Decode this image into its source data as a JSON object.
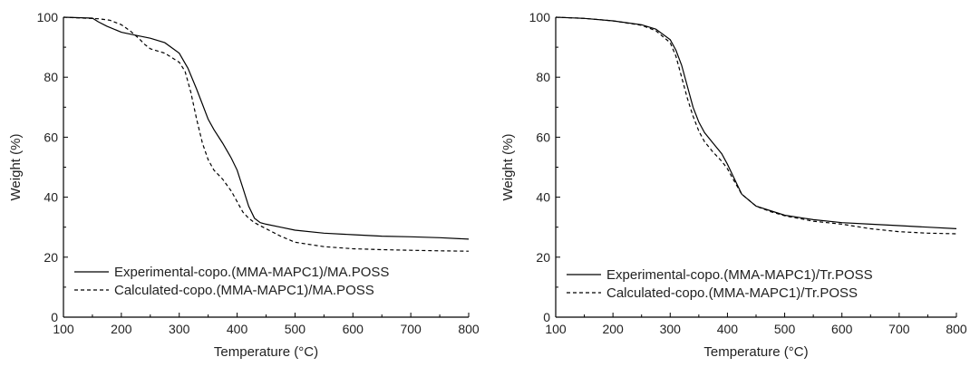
{
  "chart_data": [
    {
      "type": "line",
      "title": "",
      "xlabel": "Temperature (°C)",
      "ylabel": "Weight (%)",
      "xlim": [
        100,
        800
      ],
      "ylim": [
        0,
        100
      ],
      "xticks": [
        100,
        200,
        300,
        400,
        500,
        600,
        700,
        800
      ],
      "yticks": [
        0,
        20,
        40,
        60,
        80,
        100
      ],
      "grid": false,
      "legend": "bottom-left",
      "series": [
        {
          "name": "Experimental-copo.(MMA-MAPC1)/MA.POSS",
          "style": "solid",
          "x": [
            100,
            150,
            160,
            175,
            200,
            225,
            250,
            275,
            300,
            315,
            330,
            340,
            350,
            360,
            375,
            390,
            400,
            410,
            420,
            430,
            440,
            450,
            475,
            500,
            550,
            600,
            650,
            700,
            750,
            800
          ],
          "y": [
            100,
            99.7,
            98.5,
            97,
            95,
            94,
            93,
            91.5,
            88,
            83,
            76,
            71,
            66,
            62.5,
            58,
            53,
            49,
            43,
            37,
            33,
            31.5,
            31,
            30,
            29,
            28,
            27.5,
            27,
            26.8,
            26.5,
            26
          ]
        },
        {
          "name": "Calculated-copo.(MMA-MAPC1)/MA.POSS",
          "style": "dashed",
          "x": [
            100,
            160,
            180,
            200,
            215,
            230,
            240,
            250,
            275,
            300,
            310,
            320,
            330,
            340,
            350,
            360,
            375,
            390,
            400,
            410,
            420,
            430,
            450,
            475,
            500,
            550,
            600,
            650,
            700,
            750,
            800
          ],
          "y": [
            100,
            99.5,
            99,
            97.5,
            95.5,
            93,
            91,
            89.5,
            88,
            85,
            82,
            75,
            66,
            58,
            52.5,
            49,
            46,
            42,
            38.5,
            35,
            33,
            31.5,
            29.5,
            27,
            25,
            23.5,
            22.8,
            22.5,
            22.3,
            22.1,
            22
          ]
        }
      ]
    },
    {
      "type": "line",
      "title": "",
      "xlabel": "Temperature (°C)",
      "ylabel": "Weight (%)",
      "xlim": [
        100,
        800
      ],
      "ylim": [
        0,
        100
      ],
      "xticks": [
        100,
        200,
        300,
        400,
        500,
        600,
        700,
        800
      ],
      "yticks": [
        0,
        20,
        40,
        60,
        80,
        100
      ],
      "grid": false,
      "legend": "bottom-left",
      "series": [
        {
          "name": "Experimental-copo.(MMA-MAPC1)/Tr.POSS",
          "style": "solid",
          "x": [
            100,
            150,
            200,
            250,
            275,
            300,
            310,
            320,
            330,
            340,
            350,
            360,
            375,
            390,
            400,
            410,
            425,
            450,
            475,
            500,
            550,
            600,
            650,
            700,
            750,
            800
          ],
          "y": [
            100,
            99.6,
            98.8,
            97.5,
            96,
            92.5,
            89,
            84,
            77,
            70,
            65,
            61.5,
            58,
            54.5,
            51,
            47,
            41,
            37,
            35.5,
            34,
            32.5,
            31.5,
            31,
            30.5,
            30,
            29.5
          ]
        },
        {
          "name": "Calculated-copo.(MMA-MAPC1)/Tr.POSS",
          "style": "dashed",
          "x": [
            100,
            150,
            200,
            250,
            275,
            300,
            310,
            320,
            330,
            340,
            350,
            360,
            375,
            390,
            400,
            410,
            425,
            450,
            475,
            500,
            550,
            600,
            650,
            700,
            750,
            800
          ],
          "y": [
            100,
            99.6,
            98.8,
            97.3,
            95.5,
            91.5,
            87,
            80,
            73,
            67,
            62,
            58.5,
            55,
            52,
            49.5,
            46,
            41,
            37,
            35.2,
            33.8,
            32,
            31,
            29.5,
            28.5,
            28,
            27.8
          ]
        }
      ]
    }
  ]
}
